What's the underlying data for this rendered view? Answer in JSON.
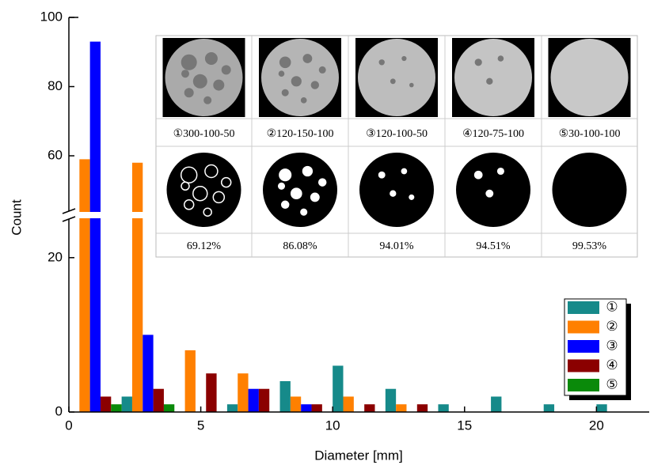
{
  "chart_data": {
    "type": "bar",
    "x_label": "Diameter [mm]",
    "y_label": "Count",
    "xlim": [
      0,
      22
    ],
    "xticks": [
      0,
      5,
      10,
      15,
      20
    ],
    "ylim": [
      0,
      100
    ],
    "yticks": [
      0,
      20,
      60,
      80,
      100
    ],
    "axis_break": [
      25,
      44
    ],
    "legend": "lower right",
    "series": [
      {
        "name": "①",
        "color": "#168a8a",
        "x": [
          2.2,
          6.2,
          8.2,
          10.2,
          12.2,
          14.2,
          16.2,
          18.2,
          20.2
        ],
        "values": [
          2,
          1,
          4,
          6,
          3,
          1,
          2,
          1,
          1
        ]
      },
      {
        "name": "②",
        "color": "#ff8000",
        "x": [
          0.6,
          2.6,
          4.6,
          6.6,
          8.6,
          10.6,
          12.6
        ],
        "values": [
          59,
          58,
          8,
          5,
          2,
          2,
          1
        ]
      },
      {
        "name": "③",
        "color": "#0000ff",
        "x": [
          1.0,
          3.0,
          7.0,
          9.0
        ],
        "values": [
          93,
          10,
          3,
          1
        ]
      },
      {
        "name": "④",
        "color": "#8b0000",
        "x": [
          1.4,
          3.4,
          5.4,
          7.4,
          9.4,
          11.4,
          13.4
        ],
        "values": [
          2,
          3,
          5,
          3,
          1,
          1,
          1
        ]
      },
      {
        "name": "⑤",
        "color": "#0a8a0a",
        "x": [
          1.8,
          3.8
        ],
        "values": [
          1,
          1
        ]
      }
    ],
    "inset": {
      "labels": [
        "①300-100-50",
        "②120-150-100",
        "③120-100-50",
        "④120-75-100",
        "⑤30-100-100"
      ],
      "percentages": [
        "69.12%",
        "86.08%",
        "94.01%",
        "94.51%",
        "99.53%"
      ]
    }
  }
}
